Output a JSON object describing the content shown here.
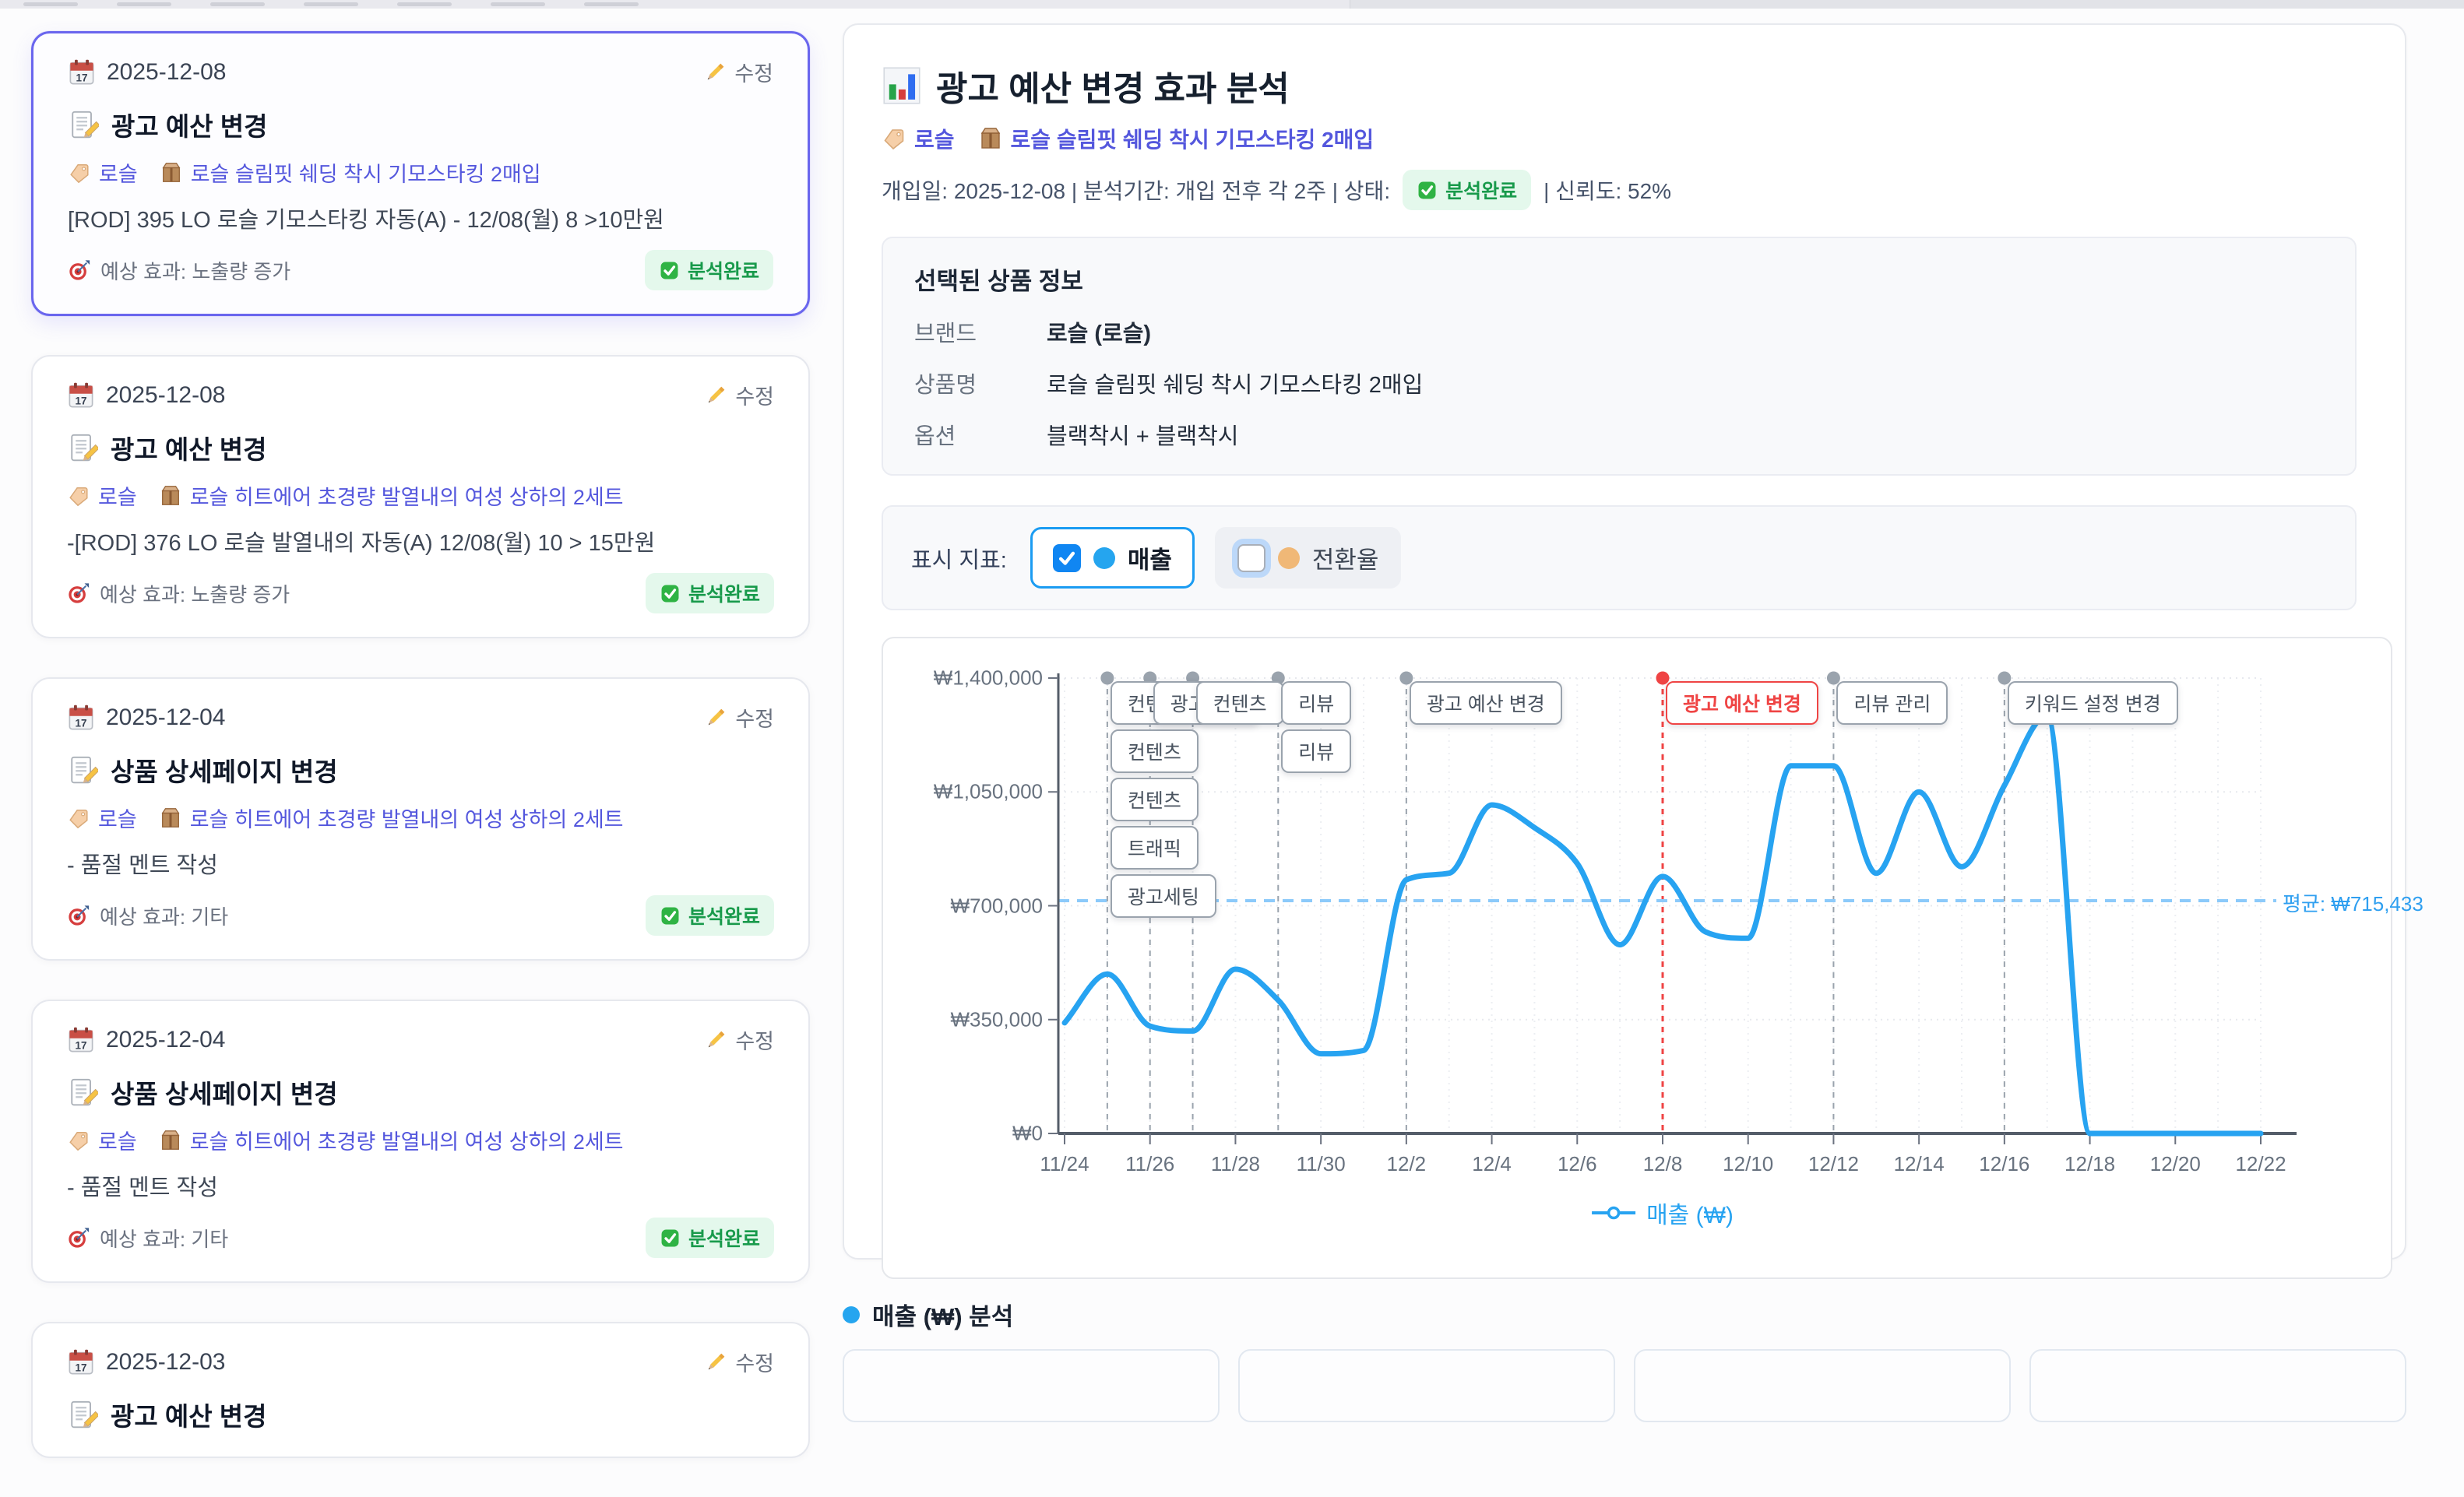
{
  "timeline": {
    "cards": [
      {
        "date": "2025-12-08",
        "edit_label": "수정",
        "title": "광고 예산 변경",
        "brand_tag": "로슬",
        "product_tag": "로슬 슬림핏 쉐딩 착시 기모스타킹 2매입",
        "description": "[ROD] 395 LO 로슬 기모스타킹 자동(A) - 12/08(월) 8 >10만원",
        "effect": "예상 효과: 노출량 증가",
        "status": "분석완료",
        "selected": true,
        "partial": false
      },
      {
        "date": "2025-12-08",
        "edit_label": "수정",
        "title": "광고 예산 변경",
        "brand_tag": "로슬",
        "product_tag": "로슬 히트에어 초경량 발열내의 여성 상하의 2세트",
        "description": "-[ROD] 376 LO 로슬 발열내의 자동(A) 12/08(월) 10 > 15만원",
        "effect": "예상 효과: 노출량 증가",
        "status": "분석완료",
        "selected": false,
        "partial": false
      },
      {
        "date": "2025-12-04",
        "edit_label": "수정",
        "title": "상품 상세페이지 변경",
        "brand_tag": "로슬",
        "product_tag": "로슬 히트에어 초경량 발열내의 여성 상하의 2세트",
        "description": "- 품절 멘트 작성",
        "effect": "예상 효과: 기타",
        "status": "분석완료",
        "selected": false,
        "partial": false
      },
      {
        "date": "2025-12-04",
        "edit_label": "수정",
        "title": "상품 상세페이지 변경",
        "brand_tag": "로슬",
        "product_tag": "로슬 히트에어 초경량 발열내의 여성 상하의 2세트",
        "description": "- 품절 멘트 작성",
        "effect": "예상 효과: 기타",
        "status": "분석완료",
        "selected": false,
        "partial": false
      },
      {
        "date": "2025-12-03",
        "edit_label": "수정",
        "title": "광고 예산 변경",
        "brand_tag": "",
        "product_tag": "",
        "description": "",
        "effect": "",
        "status": "",
        "selected": false,
        "partial": true
      }
    ]
  },
  "analysis": {
    "title": "광고 예산 변경 효과 분석",
    "brand_tag": "로슬",
    "product_tag": "로슬 슬림핏 쉐딩 착시 기모스타킹 2매입",
    "meta_left": "개입일: 2025-12-08 | 분석기간: 개입 전후 각 2주 | 상태:",
    "meta_status": "분석완료",
    "meta_right": "| 신뢰도: 52%",
    "product_info": {
      "heading": "선택된 상품 정보",
      "rows": [
        {
          "label": "브랜드",
          "value": "로슬 (로슬)"
        },
        {
          "label": "상품명",
          "value": "로슬 슬림핏 쉐딩 착시 기모스타킹 2매입"
        },
        {
          "label": "옵션",
          "value": "블랙착시 + 블랙착시"
        }
      ]
    },
    "metrics": {
      "label": "표시 지표:",
      "options": [
        {
          "label": "매출",
          "checked": true,
          "dot_color": "#25a5ef"
        },
        {
          "label": "전환율",
          "checked": false,
          "dot_color": "#f0b877"
        }
      ]
    }
  },
  "chart_data": {
    "type": "line",
    "x_start_date": "11/24",
    "x_tick_labels": [
      "11/24",
      "11/26",
      "11/28",
      "11/30",
      "12/2",
      "12/4",
      "12/6",
      "12/8",
      "12/10",
      "12/12",
      "12/14",
      "12/16",
      "12/18",
      "12/20",
      "12/22"
    ],
    "x_range_days": 28,
    "y_tick_values": [
      0,
      350000,
      700000,
      1050000,
      1400000
    ],
    "y_tick_labels": [
      "₩0",
      "₩350,000",
      "₩700,000",
      "₩1,050,000",
      "₩1,400,000"
    ],
    "ylim": [
      0,
      1400000
    ],
    "grid": true,
    "legend_position": "bottom",
    "series": [
      {
        "name": "매출 (₩)",
        "color": "#27a3f1",
        "values": [
          340000,
          490000,
          330000,
          315000,
          505000,
          410000,
          245000,
          255000,
          780000,
          800000,
          1010000,
          940000,
          830000,
          580000,
          790000,
          620000,
          600000,
          1130000,
          1130000,
          800000,
          1050000,
          820000,
          1070000,
          1285000,
          0,
          0,
          0,
          0,
          0
        ]
      }
    ],
    "average": {
      "value": 715433,
      "label": "평균: ₩715,433",
      "color": "#8ccafa",
      "label_color": "#2f9ff0"
    },
    "events": [
      {
        "day": 1,
        "row": 0,
        "label": "컨텐츠",
        "selected": false
      },
      {
        "day": 1,
        "row": 1,
        "label": "컨텐츠",
        "selected": false
      },
      {
        "day": 1,
        "row": 2,
        "label": "컨텐츠",
        "selected": false
      },
      {
        "day": 1,
        "row": 3,
        "label": "트래픽",
        "selected": false
      },
      {
        "day": 1,
        "row": 4,
        "label": "광고세팅",
        "selected": false
      },
      {
        "day": 2,
        "row": 0,
        "label": "광고세팅",
        "selected": false
      },
      {
        "day": 3,
        "row": 0,
        "label": "컨텐츠",
        "selected": false
      },
      {
        "day": 5,
        "row": 0,
        "label": "리뷰",
        "selected": false
      },
      {
        "day": 5,
        "row": 1,
        "label": "리뷰",
        "selected": false
      },
      {
        "day": 8,
        "row": 0,
        "label": "광고 예산 변경",
        "selected": false
      },
      {
        "day": 14,
        "row": 0,
        "label": "광고 예산 변경",
        "selected": true
      },
      {
        "day": 18,
        "row": 0,
        "label": "리뷰 관리",
        "selected": false
      },
      {
        "day": 22,
        "row": 0,
        "label": "키워드 설정 변경",
        "selected": false
      }
    ],
    "event_line_color": "#9aa3ad",
    "selected_event_color": "#ef4444",
    "legend_label": "매출 (₩)"
  },
  "bottom": {
    "heading": "매출 (₩) 분석",
    "dot_color": "#25a5ef",
    "stub_count": 4
  },
  "colors": {
    "accent_indigo": "#6a66ee",
    "tag_link": "#5457dd",
    "status_green": "#189a4b",
    "line_blue": "#27a3f1"
  }
}
